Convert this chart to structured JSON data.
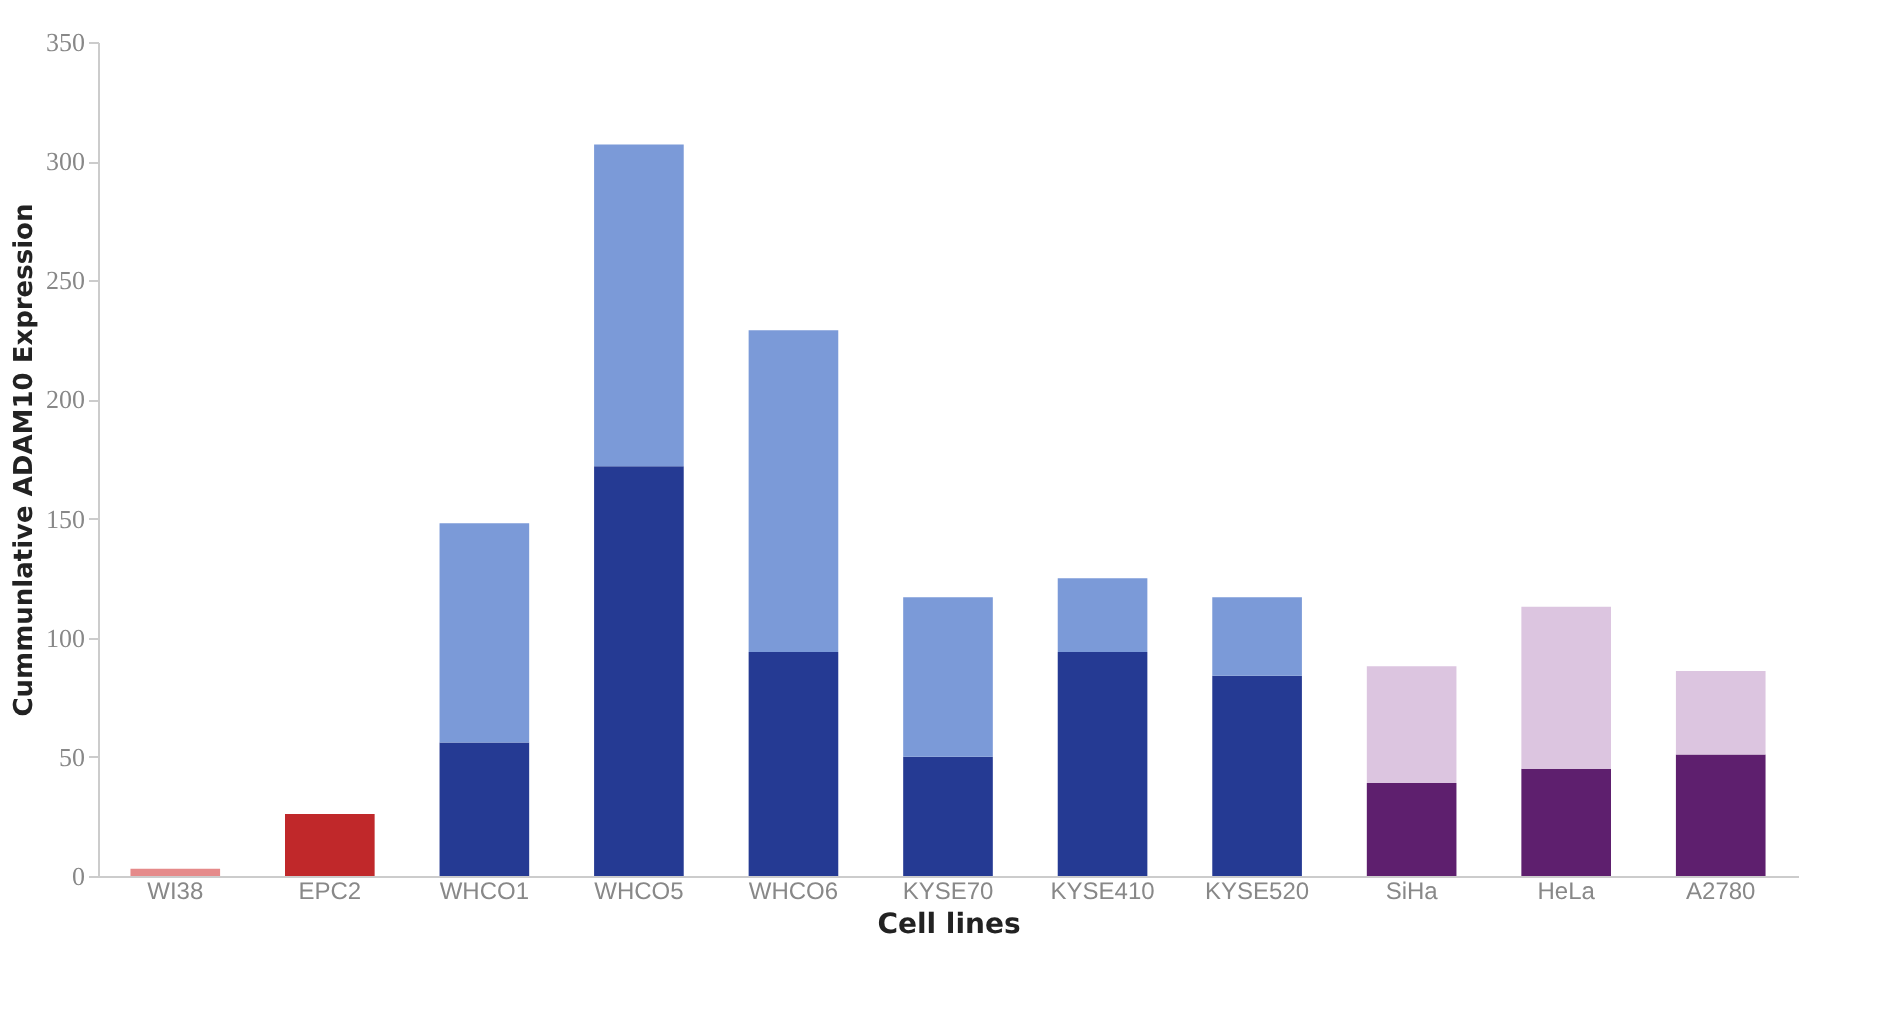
{
  "chart_data": {
    "type": "bar",
    "stacked": true,
    "xlabel": "Cell lines",
    "ylabel": "Cummunlative ADAM10 Expression",
    "categories": [
      "WI38",
      "EPC2",
      "WHCO1",
      "WHCO5",
      "WHCO6",
      "KYSE70",
      "KYSE410",
      "KYSE520",
      "SiHa",
      "HeLa",
      "A2780"
    ],
    "series": [
      {
        "colors": [
          "#e58a8a",
          "#c0282a",
          "#253a93",
          "#253a93",
          "#253a93",
          "#253a93",
          "#253a93",
          "#253a93",
          "#5e1f6e",
          "#5e1f6e",
          "#5e1f6e"
        ],
        "values": [
          3,
          26,
          56,
          172,
          94,
          50,
          94,
          84,
          39,
          45,
          51
        ]
      },
      {
        "colors": [
          null,
          null,
          "#7b9ad8",
          "#7b9ad8",
          "#7b9ad8",
          "#7b9ad8",
          "#7b9ad8",
          "#7b9ad8",
          "#dcc5e0",
          "#dcc5e0",
          "#dcc5e0"
        ],
        "values": [
          null,
          null,
          92,
          135,
          135,
          67,
          31,
          33,
          49,
          68,
          35
        ]
      }
    ],
    "ylim": [
      0,
      350
    ],
    "yticks": [
      0,
      50,
      100,
      150,
      200,
      250,
      300,
      350
    ],
    "grid": false
  }
}
